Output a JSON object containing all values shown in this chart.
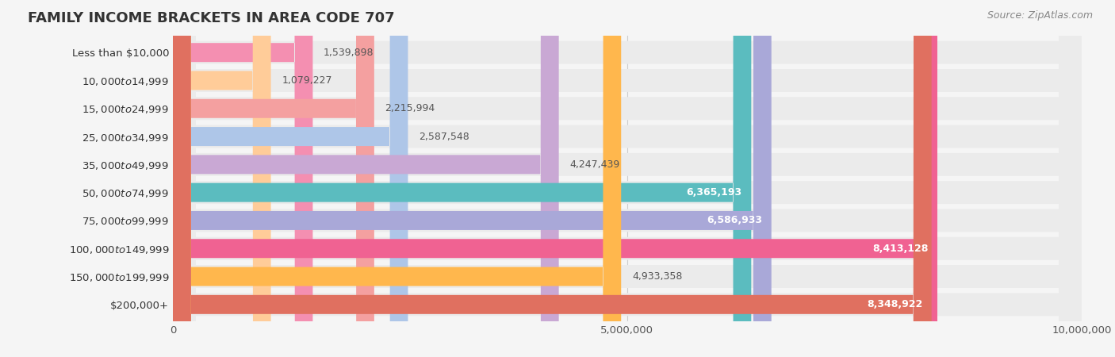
{
  "title": "FAMILY INCOME BRACKETS IN AREA CODE 707",
  "source": "Source: ZipAtlas.com",
  "categories": [
    "Less than $10,000",
    "$10,000 to $14,999",
    "$15,000 to $24,999",
    "$25,000 to $34,999",
    "$35,000 to $49,999",
    "$50,000 to $74,999",
    "$75,000 to $99,999",
    "$100,000 to $149,999",
    "$150,000 to $199,999",
    "$200,000+"
  ],
  "values": [
    1539898,
    1079227,
    2215994,
    2587548,
    4247439,
    6365193,
    6586933,
    8413128,
    4933358,
    8348922
  ],
  "bar_colors": [
    "#f48fb1",
    "#ffcc99",
    "#f4a0a0",
    "#aec6e8",
    "#c9a8d4",
    "#5bbcbf",
    "#a9a8d8",
    "#f06292",
    "#ffb74d",
    "#e07060"
  ],
  "value_labels": [
    "1,539,898",
    "1,079,227",
    "2,215,994",
    "2,587,548",
    "4,247,439",
    "6,365,193",
    "6,586,933",
    "8,413,128",
    "4,933,358",
    "8,348,922"
  ],
  "xlim": [
    0,
    10000000
  ],
  "xticks": [
    0,
    5000000,
    10000000
  ],
  "xtick_labels": [
    "0",
    "5,000,000",
    "10,000,000"
  ],
  "background_color": "#f5f5f5",
  "bar_bg_color": "#ebebeb",
  "title_fontsize": 13,
  "label_fontsize": 9.5,
  "value_fontsize": 9,
  "source_fontsize": 9
}
